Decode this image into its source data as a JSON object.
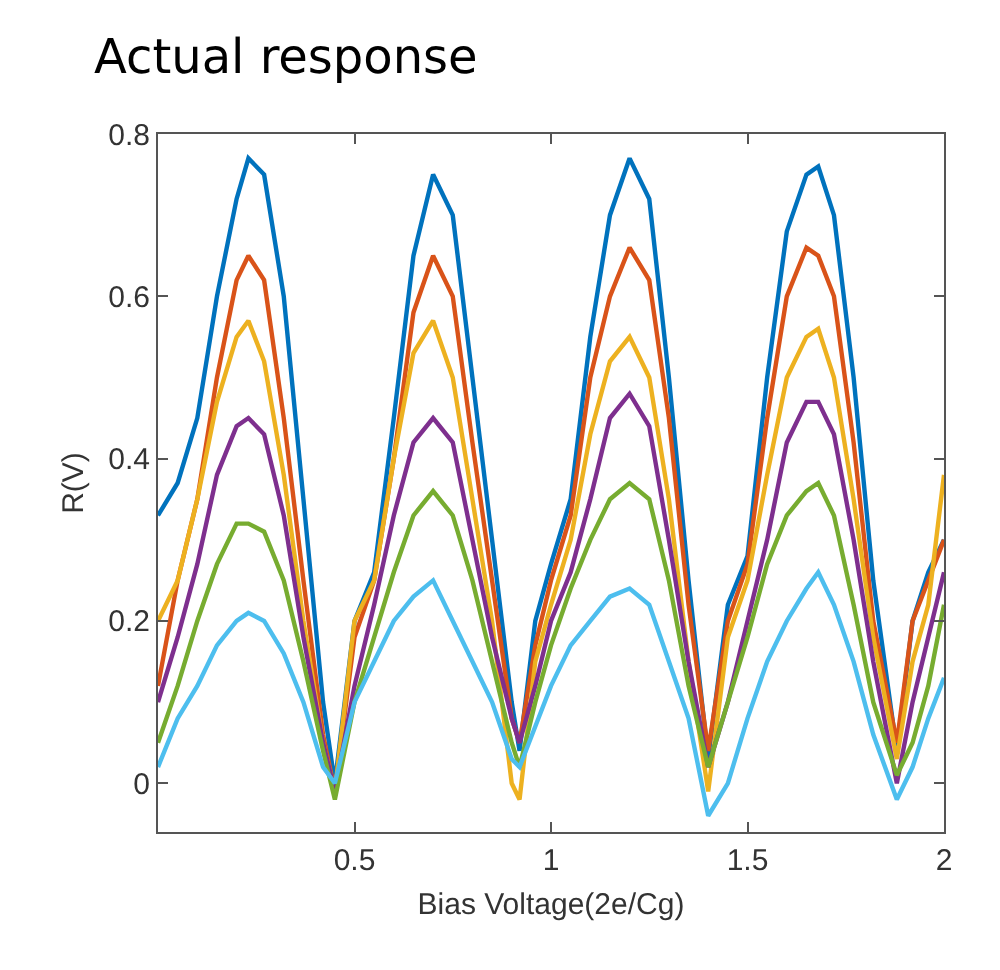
{
  "chart_data": {
    "type": "line",
    "title": "Actual response",
    "xlabel": "Bias Voltage(2e/Cg)",
    "ylabel": "R(V)",
    "x": [
      0,
      0.05,
      0.1,
      0.15,
      0.2,
      0.23,
      0.27,
      0.32,
      0.37,
      0.42,
      0.45,
      0.5,
      0.55,
      0.6,
      0.65,
      0.7,
      0.75,
      0.8,
      0.85,
      0.9,
      0.92,
      0.96,
      1.0,
      1.05,
      1.1,
      1.15,
      1.2,
      1.25,
      1.3,
      1.35,
      1.4,
      1.45,
      1.5,
      1.55,
      1.6,
      1.65,
      1.68,
      1.72,
      1.77,
      1.82,
      1.88,
      1.92,
      1.96,
      2.0
    ],
    "series": [
      {
        "color": "#0072bd",
        "values": [
          0.33,
          0.37,
          0.45,
          0.6,
          0.72,
          0.77,
          0.75,
          0.6,
          0.35,
          0.1,
          0.0,
          0.2,
          0.26,
          0.45,
          0.65,
          0.75,
          0.7,
          0.5,
          0.3,
          0.1,
          0.04,
          0.2,
          0.27,
          0.35,
          0.55,
          0.7,
          0.77,
          0.72,
          0.5,
          0.25,
          0.03,
          0.22,
          0.28,
          0.5,
          0.68,
          0.75,
          0.76,
          0.7,
          0.5,
          0.25,
          0.04,
          0.2,
          0.26,
          0.3
        ]
      },
      {
        "color": "#d95319",
        "values": [
          0.12,
          0.25,
          0.35,
          0.5,
          0.62,
          0.65,
          0.62,
          0.45,
          0.25,
          0.06,
          -0.01,
          0.18,
          0.25,
          0.4,
          0.58,
          0.65,
          0.6,
          0.42,
          0.25,
          0.08,
          0.05,
          0.17,
          0.25,
          0.33,
          0.5,
          0.6,
          0.66,
          0.62,
          0.45,
          0.22,
          0.04,
          0.2,
          0.27,
          0.45,
          0.6,
          0.66,
          0.65,
          0.6,
          0.42,
          0.2,
          0.05,
          0.2,
          0.25,
          0.3
        ]
      },
      {
        "color": "#edb120",
        "values": [
          0.2,
          0.25,
          0.35,
          0.47,
          0.55,
          0.57,
          0.52,
          0.38,
          0.2,
          0.05,
          -0.01,
          0.2,
          0.25,
          0.4,
          0.53,
          0.57,
          0.5,
          0.35,
          0.2,
          0.0,
          -0.02,
          0.15,
          0.22,
          0.3,
          0.43,
          0.52,
          0.55,
          0.5,
          0.35,
          0.15,
          -0.01,
          0.18,
          0.25,
          0.38,
          0.5,
          0.55,
          0.56,
          0.5,
          0.35,
          0.18,
          0.03,
          0.15,
          0.22,
          0.38
        ]
      },
      {
        "color": "#7e2f8e",
        "values": [
          0.1,
          0.18,
          0.27,
          0.38,
          0.44,
          0.45,
          0.43,
          0.33,
          0.18,
          0.05,
          -0.01,
          0.12,
          0.22,
          0.33,
          0.42,
          0.45,
          0.42,
          0.3,
          0.18,
          0.08,
          0.05,
          0.12,
          0.2,
          0.26,
          0.35,
          0.45,
          0.48,
          0.44,
          0.3,
          0.15,
          0.02,
          0.1,
          0.2,
          0.3,
          0.42,
          0.47,
          0.47,
          0.43,
          0.3,
          0.15,
          0.0,
          0.1,
          0.18,
          0.26
        ]
      },
      {
        "color": "#77ac30",
        "values": [
          0.05,
          0.12,
          0.2,
          0.27,
          0.32,
          0.32,
          0.31,
          0.25,
          0.15,
          0.04,
          -0.02,
          0.1,
          0.18,
          0.26,
          0.33,
          0.36,
          0.33,
          0.25,
          0.15,
          0.05,
          0.02,
          0.1,
          0.17,
          0.24,
          0.3,
          0.35,
          0.37,
          0.35,
          0.25,
          0.12,
          0.02,
          0.1,
          0.18,
          0.27,
          0.33,
          0.36,
          0.37,
          0.33,
          0.22,
          0.1,
          0.01,
          0.05,
          0.12,
          0.22
        ]
      },
      {
        "color": "#4dbeee",
        "values": [
          0.02,
          0.08,
          0.12,
          0.17,
          0.2,
          0.21,
          0.2,
          0.16,
          0.1,
          0.02,
          0.0,
          0.1,
          0.15,
          0.2,
          0.23,
          0.25,
          0.2,
          0.15,
          0.1,
          0.03,
          0.02,
          0.07,
          0.12,
          0.17,
          0.2,
          0.23,
          0.24,
          0.22,
          0.15,
          0.08,
          -0.04,
          0.0,
          0.08,
          0.15,
          0.2,
          0.24,
          0.26,
          0.22,
          0.15,
          0.06,
          -0.02,
          0.02,
          0.08,
          0.13
        ]
      }
    ],
    "xlim": [
      0,
      2
    ],
    "xticks": [
      0.5,
      1,
      1.5,
      2
    ],
    "ylim": [
      -0.06,
      0.8
    ],
    "yticks": [
      0,
      0.2,
      0.4,
      0.6,
      0.8
    ],
    "grid": false,
    "marker": "none",
    "line_style": "solid"
  }
}
